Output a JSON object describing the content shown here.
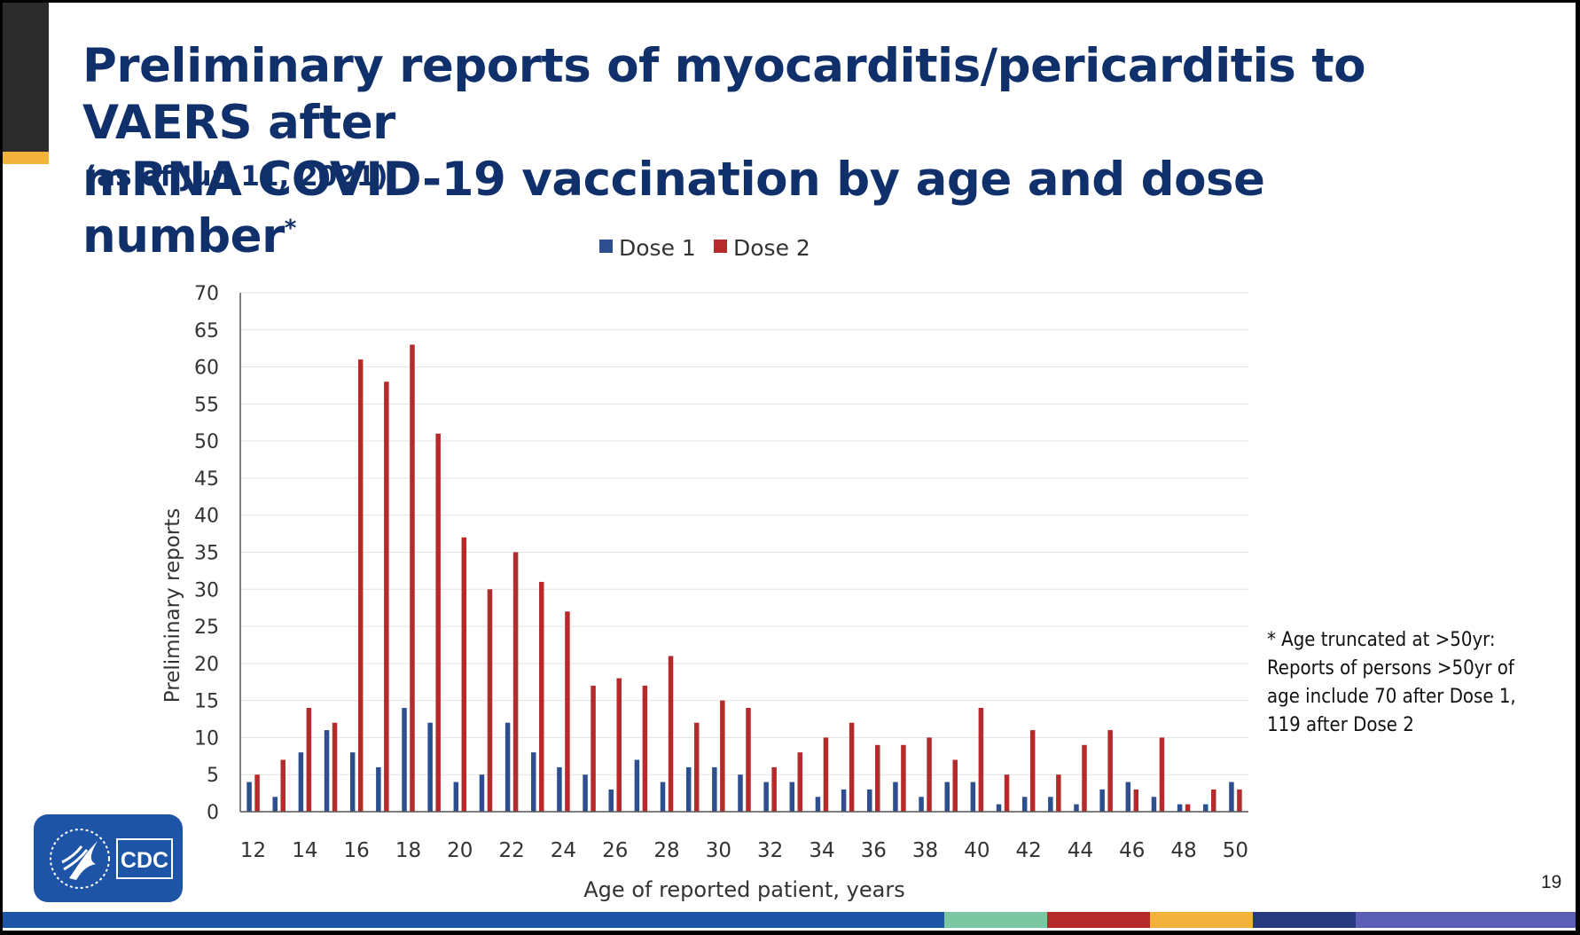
{
  "slide": {
    "title_line1": "Preliminary reports of myocarditis/pericarditis to VAERS after",
    "title_line2": "mRNA COVID-19 vaccination by age and dose number",
    "title_mark": "*",
    "subtitle": "(as of Jun 11, 2021)",
    "footnote": "* Age truncated at >50yr: Reports of persons >50yr of age include 70 after Dose 1, 119 after Dose 2",
    "page_number": "19",
    "logo_text": "CDC",
    "accent_colors": [
      "#1d54a6",
      "#7cc7a3",
      "#b52a2a",
      "#f2b23b",
      "#263a80",
      "#5a5fb5"
    ]
  },
  "chart_data": {
    "type": "bar",
    "title": "",
    "xlabel": "Age of reported patient, years",
    "ylabel": "Preliminary reports",
    "ylim": [
      0,
      70
    ],
    "yticks": [
      0,
      5,
      10,
      15,
      20,
      25,
      30,
      35,
      40,
      45,
      50,
      55,
      60,
      65,
      70
    ],
    "x_tick_labels": [
      "12",
      "14",
      "16",
      "18",
      "20",
      "22",
      "24",
      "26",
      "28",
      "30",
      "32",
      "34",
      "36",
      "38",
      "40",
      "42",
      "44",
      "46",
      "48",
      "50"
    ],
    "categories": [
      12,
      13,
      14,
      15,
      16,
      17,
      18,
      19,
      20,
      21,
      22,
      23,
      24,
      25,
      26,
      27,
      28,
      29,
      30,
      31,
      32,
      33,
      34,
      35,
      36,
      37,
      38,
      39,
      40,
      41,
      42,
      43,
      44,
      45,
      46,
      47,
      48,
      49,
      50
    ],
    "grid": true,
    "legend_position": "top-center",
    "series": [
      {
        "name": "Dose 1",
        "color": "#2e4f8f",
        "values": [
          4,
          2,
          8,
          11,
          8,
          6,
          14,
          12,
          4,
          5,
          12,
          8,
          6,
          5,
          3,
          7,
          4,
          6,
          6,
          5,
          4,
          4,
          2,
          3,
          3,
          4,
          2,
          4,
          4,
          1,
          2,
          2,
          1,
          3,
          4,
          2,
          1,
          1,
          4
        ]
      },
      {
        "name": "Dose 2",
        "color": "#b52a2a",
        "values": [
          5,
          7,
          14,
          12,
          61,
          58,
          63,
          51,
          37,
          30,
          35,
          31,
          27,
          17,
          18,
          17,
          21,
          12,
          15,
          14,
          6,
          8,
          10,
          12,
          9,
          9,
          10,
          7,
          14,
          5,
          11,
          5,
          9,
          11,
          3,
          10,
          1,
          3,
          3
        ]
      }
    ]
  }
}
